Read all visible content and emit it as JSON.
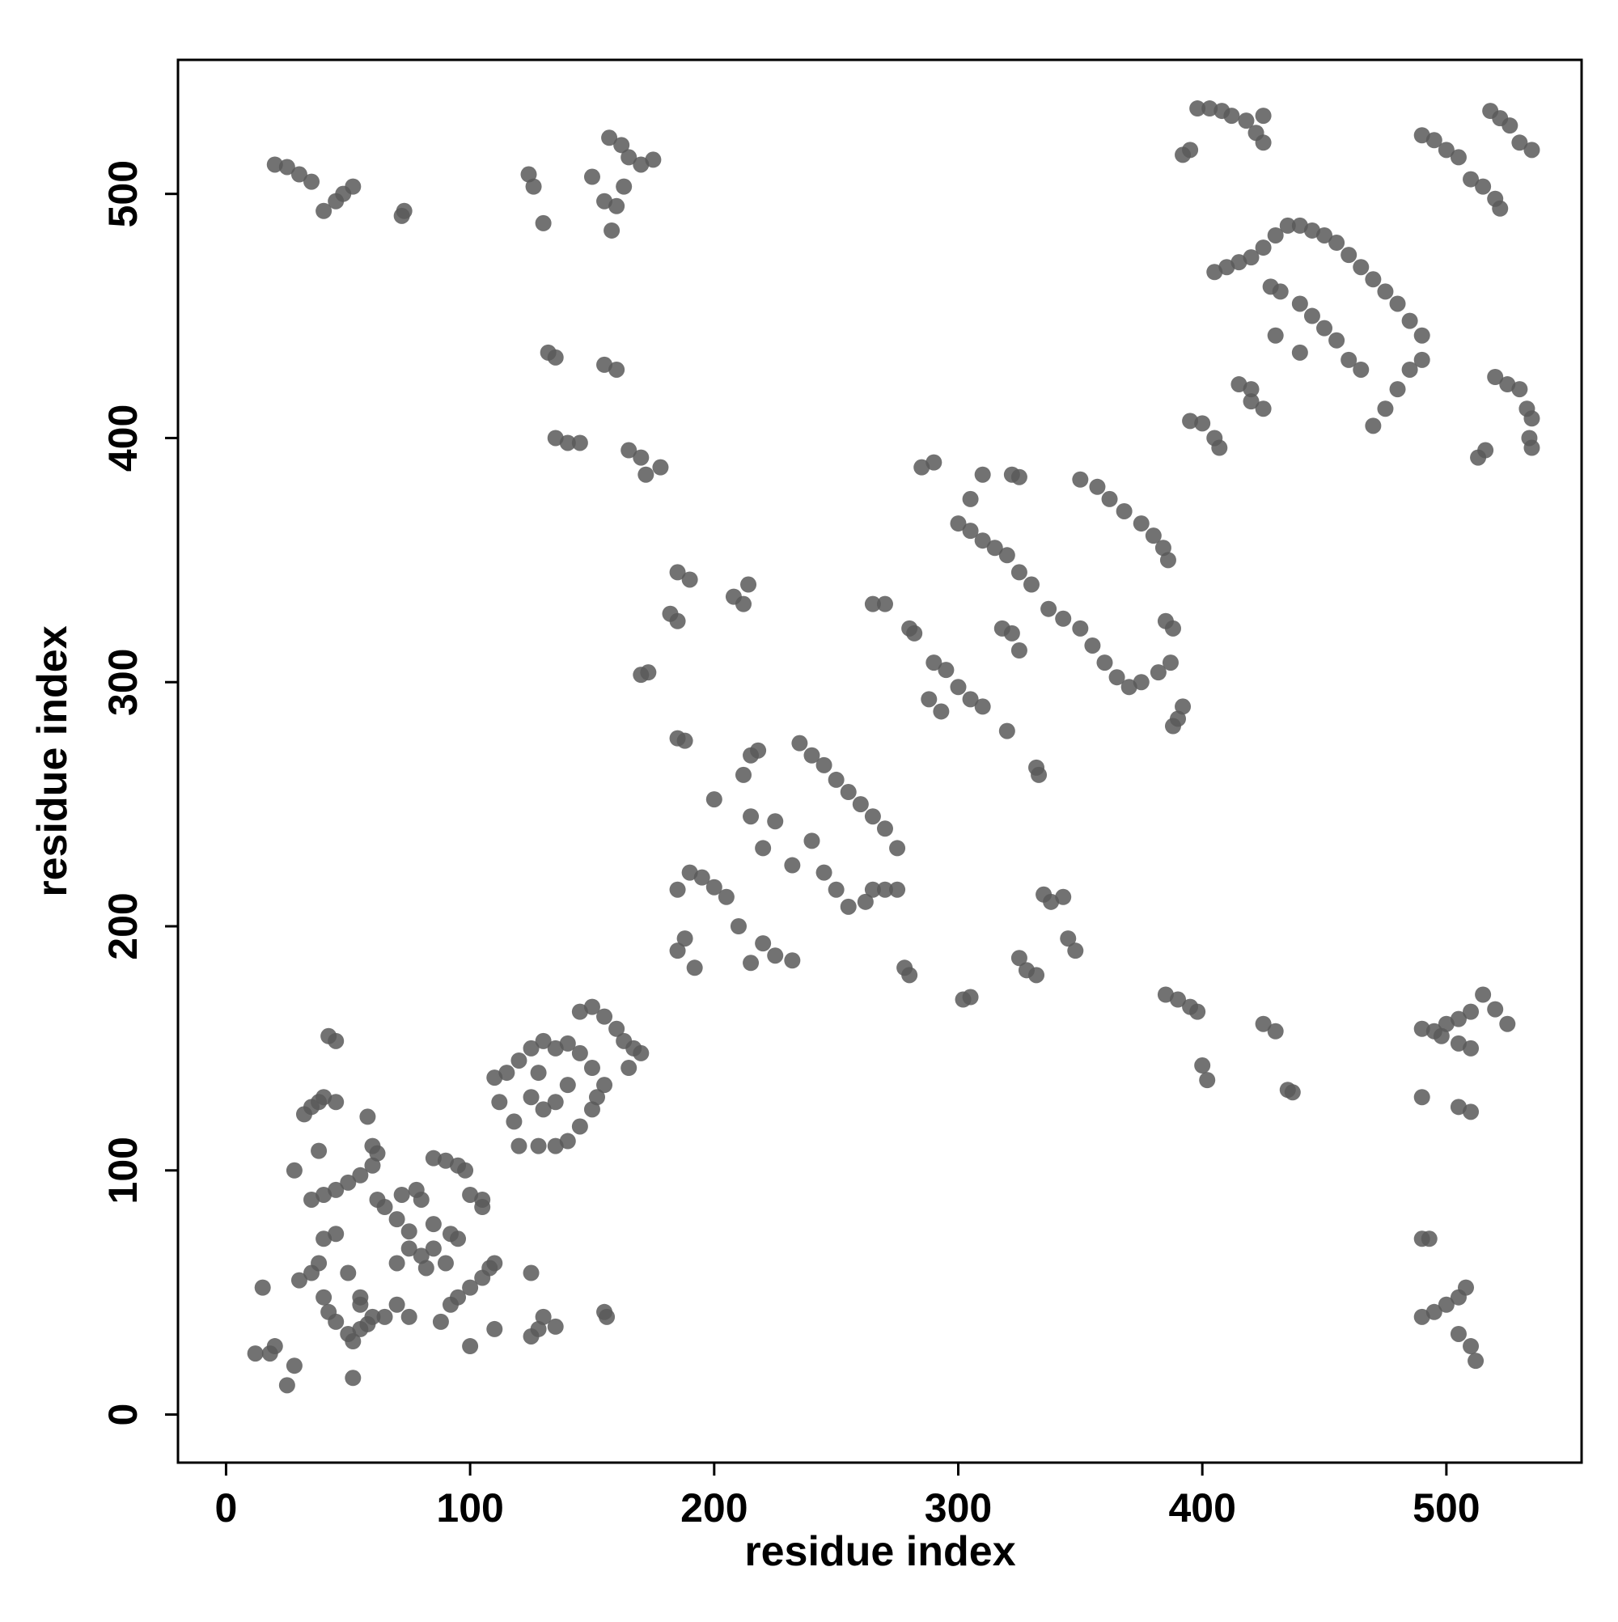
{
  "chart_data": {
    "type": "scatter",
    "x_label": "residue index",
    "y_label": "residue index",
    "xlim": [
      -19.7,
      555.4
    ],
    "ylim": [
      -19.7,
      554.9
    ],
    "xticks": [
      0,
      100,
      200,
      300,
      400,
      500
    ],
    "yticks": [
      0,
      100,
      200,
      300,
      400,
      500
    ],
    "color": "#595959",
    "x": [
      20,
      25,
      30,
      35,
      40,
      45,
      48,
      52,
      72,
      73,
      124,
      126,
      130,
      150,
      155,
      158,
      157,
      162,
      165,
      170,
      175,
      160,
      163,
      132,
      135,
      135,
      140,
      145,
      155,
      160,
      165,
      170,
      172,
      178,
      185,
      190,
      182,
      185,
      170,
      173,
      185,
      188,
      208,
      212,
      214,
      215,
      212,
      218,
      190,
      195,
      200,
      205,
      185,
      200,
      215,
      225,
      220,
      232,
      240,
      245,
      250,
      255,
      235,
      240,
      245,
      250,
      255,
      260,
      265,
      270,
      275,
      265,
      270,
      275,
      262,
      278,
      280,
      210,
      220,
      225,
      215,
      232,
      188,
      185,
      192,
      280,
      282,
      265,
      270,
      290,
      295,
      300,
      305,
      310,
      288,
      293,
      285,
      290,
      300,
      305,
      310,
      305,
      310,
      315,
      320,
      325,
      330,
      322,
      325,
      318,
      322,
      325,
      320,
      333,
      332,
      337,
      343,
      350,
      355,
      360,
      365,
      370,
      375,
      382,
      387,
      385,
      388,
      390,
      388,
      392,
      350,
      357,
      362,
      368,
      375,
      380,
      384,
      386,
      335,
      338,
      343,
      325,
      328,
      332,
      345,
      348,
      302,
      305,
      385,
      390,
      395,
      398,
      400,
      402,
      425,
      430,
      435,
      437,
      490,
      495,
      500,
      505,
      510,
      515,
      520,
      525,
      498,
      505,
      510,
      490,
      505,
      510,
      490,
      493,
      490,
      495,
      500,
      505,
      508,
      505,
      510,
      512,
      395,
      400,
      405,
      407,
      415,
      420,
      420,
      425,
      405,
      410,
      415,
      420,
      425,
      430,
      435,
      440,
      445,
      450,
      455,
      460,
      465,
      470,
      475,
      480,
      485,
      490,
      428,
      432,
      440,
      445,
      430,
      440,
      450,
      455,
      460,
      465,
      470,
      475,
      480,
      485,
      490,
      398,
      403,
      408,
      412,
      418,
      425,
      422,
      425,
      392,
      395,
      490,
      495,
      500,
      505,
      510,
      515,
      520,
      522,
      518,
      522,
      526,
      530,
      535,
      513,
      516,
      520,
      525,
      530,
      533,
      535,
      534,
      535,
      15,
      12,
      18,
      20,
      25,
      28,
      30,
      35,
      38,
      40,
      42,
      45,
      50,
      52,
      55,
      58,
      60,
      55,
      65,
      70,
      75,
      32,
      35,
      38,
      42,
      45,
      40,
      45,
      35,
      40,
      45,
      50,
      55,
      60,
      62,
      58,
      60,
      62,
      65,
      70,
      75,
      72,
      78,
      80,
      85,
      90,
      95,
      98,
      85,
      90,
      85,
      92,
      95,
      75,
      80,
      82,
      88,
      92,
      95,
      100,
      105,
      108,
      110,
      100,
      105,
      105,
      28,
      38,
      40,
      45,
      50,
      55,
      52,
      70,
      100,
      110,
      125,
      125,
      128,
      130,
      135,
      155,
      156,
      110,
      115,
      120,
      125,
      130,
      135,
      112,
      118,
      120,
      128,
      135,
      140,
      145,
      150,
      152,
      155,
      150,
      145,
      140,
      125,
      130,
      128,
      135,
      140,
      145,
      150,
      155,
      160,
      163,
      167,
      170,
      165
    ],
    "values": [
      512,
      511,
      508,
      505,
      493,
      497,
      500,
      503,
      491,
      493,
      508,
      503,
      488,
      507,
      497,
      485,
      523,
      520,
      515,
      512,
      514,
      495,
      503,
      435,
      433,
      400,
      398,
      398,
      430,
      428,
      395,
      392,
      385,
      388,
      345,
      342,
      328,
      325,
      303,
      304,
      277,
      276,
      335,
      332,
      340,
      270,
      262,
      272,
      222,
      220,
      216,
      212,
      215,
      252,
      245,
      243,
      232,
      225,
      235,
      222,
      215,
      208,
      275,
      270,
      266,
      260,
      255,
      250,
      245,
      240,
      232,
      215,
      215,
      215,
      210,
      183,
      180,
      200,
      193,
      188,
      185,
      186,
      195,
      190,
      183,
      322,
      320,
      332,
      332,
      308,
      305,
      298,
      293,
      290,
      293,
      288,
      388,
      390,
      365,
      375,
      385,
      362,
      358,
      355,
      352,
      345,
      340,
      385,
      384,
      322,
      320,
      313,
      280,
      262,
      265,
      330,
      326,
      322,
      315,
      308,
      302,
      298,
      300,
      304,
      308,
      325,
      322,
      285,
      282,
      290,
      383,
      380,
      375,
      370,
      365,
      360,
      355,
      350,
      213,
      210,
      212,
      187,
      182,
      180,
      195,
      190,
      170,
      171,
      172,
      170,
      167,
      165,
      143,
      137,
      160,
      157,
      133,
      132,
      158,
      157,
      160,
      162,
      165,
      172,
      166,
      160,
      155,
      152,
      150,
      130,
      126,
      124,
      72,
      72,
      40,
      42,
      45,
      48,
      52,
      33,
      28,
      22,
      407,
      406,
      400,
      396,
      422,
      420,
      415,
      412,
      468,
      470,
      472,
      474,
      478,
      483,
      487,
      487,
      485,
      483,
      480,
      475,
      470,
      465,
      460,
      455,
      448,
      442,
      462,
      460,
      455,
      450,
      442,
      435,
      445,
      440,
      432,
      428,
      405,
      412,
      420,
      428,
      432,
      535,
      535,
      534,
      532,
      530,
      532,
      525,
      521,
      516,
      518,
      524,
      522,
      518,
      515,
      506,
      503,
      498,
      494,
      534,
      531,
      528,
      521,
      518,
      392,
      395,
      425,
      422,
      420,
      412,
      408,
      400,
      396,
      52,
      25,
      25,
      28,
      12,
      20,
      55,
      58,
      62,
      48,
      42,
      38,
      33,
      30,
      35,
      37,
      40,
      45,
      40,
      45,
      40,
      123,
      126,
      128,
      155,
      153,
      130,
      128,
      88,
      90,
      92,
      95,
      98,
      102,
      107,
      122,
      110,
      88,
      85,
      80,
      75,
      90,
      92,
      88,
      105,
      104,
      102,
      100,
      68,
      62,
      78,
      74,
      72,
      68,
      65,
      60,
      38,
      45,
      48,
      52,
      56,
      60,
      62,
      90,
      88,
      85,
      100,
      108,
      72,
      74,
      58,
      48,
      15,
      62,
      28,
      35,
      58,
      32,
      35,
      40,
      36,
      42,
      40,
      138,
      140,
      145,
      150,
      153,
      150,
      128,
      120,
      110,
      110,
      110,
      112,
      118,
      125,
      130,
      135,
      142,
      148,
      152,
      130,
      125,
      140,
      128,
      135,
      165,
      167,
      163,
      158,
      153,
      150,
      148,
      142
    ]
  }
}
